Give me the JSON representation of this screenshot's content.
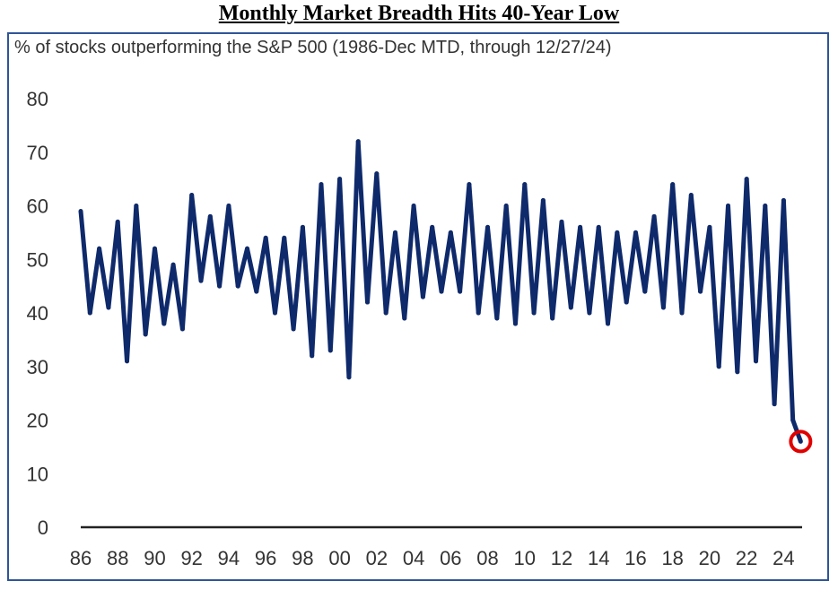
{
  "header": {
    "title": "Monthly Market Breadth Hits 40-Year Low"
  },
  "chart_data": {
    "type": "line",
    "title": "Monthly Market Breadth Hits 40-Year Low",
    "subtitle": "% of stocks outperforming the S&P 500 (1986-Dec MTD, through 12/27/24)",
    "xlabel": "",
    "ylabel": "",
    "ylim": [
      0,
      80
    ],
    "xlim": [
      1986,
      2025
    ],
    "y_ticks": [
      "0",
      "10",
      "20",
      "30",
      "40",
      "50",
      "60",
      "70",
      "80"
    ],
    "x_ticks": [
      "86",
      "88",
      "90",
      "92",
      "94",
      "96",
      "98",
      "00",
      "02",
      "04",
      "06",
      "08",
      "10",
      "12",
      "14",
      "16",
      "18",
      "20",
      "22",
      "24"
    ],
    "grid": false,
    "legend": "none",
    "colors": {
      "line": "#0f2a6b",
      "highlight": "#e00000",
      "axis": "#222222"
    },
    "annotation": {
      "x": 2024.92,
      "y": 16,
      "shape": "circle",
      "color": "#e00000"
    },
    "series": [
      {
        "x": [
          1986.0,
          1986.5,
          1987.0,
          1987.5,
          1988.0,
          1988.5,
          1989.0,
          1989.5,
          1990.0,
          1990.5,
          1991.0,
          1991.5,
          1992.0,
          1992.5,
          1993.0,
          1993.5,
          1994.0,
          1994.5,
          1995.0,
          1995.5,
          1996.0,
          1996.5,
          1997.0,
          1997.5,
          1998.0,
          1998.5,
          1999.0,
          1999.5,
          2000.0,
          2000.5,
          2001.0,
          2001.5,
          2002.0,
          2002.5,
          2003.0,
          2003.5,
          2004.0,
          2004.5,
          2005.0,
          2005.5,
          2006.0,
          2006.5,
          2007.0,
          2007.5,
          2008.0,
          2008.5,
          2009.0,
          2009.5,
          2010.0,
          2010.5,
          2011.0,
          2011.5,
          2012.0,
          2012.5,
          2013.0,
          2013.5,
          2014.0,
          2014.5,
          2015.0,
          2015.5,
          2016.0,
          2016.5,
          2017.0,
          2017.5,
          2018.0,
          2018.5,
          2019.0,
          2019.5,
          2020.0,
          2020.5,
          2021.0,
          2021.5,
          2022.0,
          2022.5,
          2023.0,
          2023.5,
          2024.0,
          2024.5,
          2024.92
        ],
        "values": [
          59,
          40,
          52,
          41,
          57,
          31,
          60,
          36,
          52,
          38,
          49,
          37,
          62,
          46,
          58,
          45,
          60,
          45,
          52,
          44,
          54,
          40,
          54,
          37,
          56,
          32,
          64,
          33,
          65,
          28,
          72,
          42,
          66,
          40,
          55,
          39,
          60,
          43,
          56,
          44,
          55,
          44,
          64,
          40,
          56,
          39,
          60,
          38,
          64,
          40,
          61,
          39,
          57,
          41,
          56,
          40,
          56,
          38,
          55,
          42,
          55,
          44,
          58,
          41,
          64,
          40,
          62,
          44,
          56,
          30,
          60,
          29,
          65,
          31,
          60,
          23,
          61,
          20,
          16
        ]
      }
    ]
  }
}
